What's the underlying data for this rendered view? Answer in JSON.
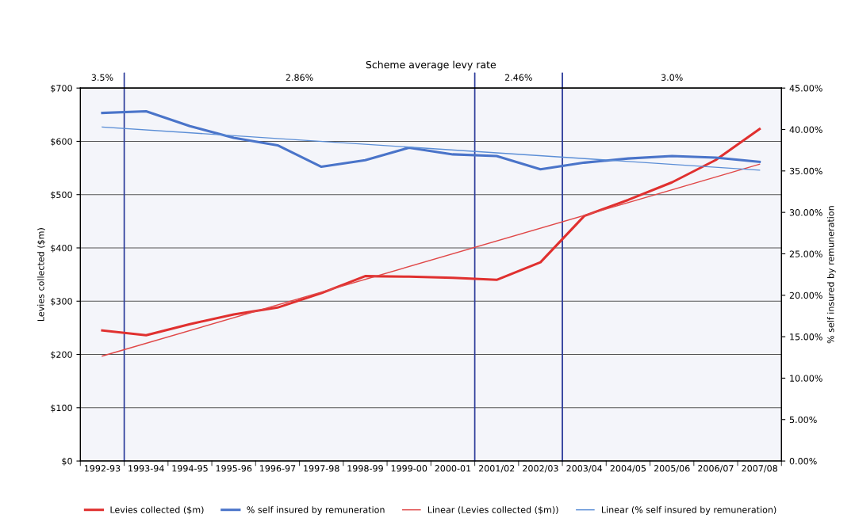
{
  "chart_data": {
    "type": "line",
    "title": "Scheme average levy rate",
    "ylabel": "Levies collected ($m)",
    "y2label": "% self insured by remuneration",
    "categories": [
      "1992-93",
      "1993-94",
      "1994-95",
      "1995-96",
      "1996-97",
      "1997-98",
      "1998-99",
      "1999-00",
      "2000-01",
      "2001/02",
      "2002/03",
      "2003/04",
      "2004/05",
      "2005/06",
      "2006/07",
      "2007/08"
    ],
    "series": [
      {
        "name": "Levies collected ($m)",
        "color": "#e0302f",
        "values": [
          245,
          236,
          257,
          275,
          288,
          315,
          347,
          346,
          344,
          340,
          373,
          460,
          490,
          523,
          565,
          623
        ]
      },
      {
        "name": "% self insured by remuneration",
        "color": "#4a74c9",
        "axis": "y2",
        "values": [
          42.0,
          42.2,
          40.4,
          39.0,
          38.1,
          35.5,
          36.3,
          37.8,
          37.0,
          36.8,
          35.2,
          36.0,
          36.5,
          36.8,
          36.6,
          36.1
        ]
      },
      {
        "name": "Linear (Levies collected ($m))",
        "color": "#e04848",
        "x": [
          "1992-93",
          "2007/08"
        ],
        "values": [
          197,
          557
        ]
      },
      {
        "name": "Linear (% self insured by remuneration)",
        "color": "#5b8ed6",
        "axis": "y2",
        "x": [
          "1992-93",
          "2007/08"
        ],
        "values": [
          40.3,
          35.1
        ]
      }
    ],
    "ylim": [
      0,
      700
    ],
    "yticks": [
      {
        "value": 0,
        "label": "$0"
      },
      {
        "value": 100,
        "label": "$100"
      },
      {
        "value": 200,
        "label": "$200"
      },
      {
        "value": 300,
        "label": "$300"
      },
      {
        "value": 400,
        "label": "$400"
      },
      {
        "value": 500,
        "label": "$500"
      },
      {
        "value": 600,
        "label": "$600"
      },
      {
        "value": 700,
        "label": "$700"
      }
    ],
    "y2lim": [
      0,
      45
    ],
    "y2ticks": [
      {
        "value": 0,
        "label": "0.00%"
      },
      {
        "value": 5,
        "label": "5.00%"
      },
      {
        "value": 10,
        "label": "10.00%"
      },
      {
        "value": 15,
        "label": "15.00%"
      },
      {
        "value": 20,
        "label": "20.00%"
      },
      {
        "value": 25,
        "label": "25.00%"
      },
      {
        "value": 30,
        "label": "30.00%"
      },
      {
        "value": 35,
        "label": "35.00%"
      },
      {
        "value": 40,
        "label": "40.00%"
      },
      {
        "value": 45,
        "label": "45.00%"
      }
    ],
    "bands": [
      {
        "axis": "x",
        "from": "1992-93",
        "to": "1992-93",
        "label": "3.5%",
        "color": "#2b3a9a"
      },
      {
        "axis": "x",
        "from": "1993-94",
        "to": "2000-01",
        "label": "2.86%",
        "color": "#2b3a9a"
      },
      {
        "axis": "x",
        "from": "2001/02",
        "to": "2002/03",
        "label": "2.46%",
        "color": "#2b3a9a"
      },
      {
        "axis": "x",
        "from": "2003/04",
        "to": "2007/08",
        "label": "3.0%",
        "color": "#2b3a9a"
      }
    ],
    "grid": "y",
    "legend": "bottom",
    "marker": "none",
    "line_style": "solid"
  }
}
